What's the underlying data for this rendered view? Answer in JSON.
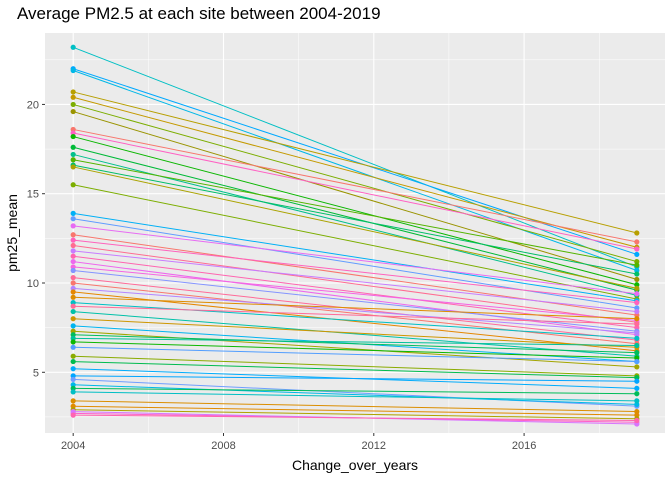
{
  "chart_data": {
    "type": "line",
    "title": "Average PM2.5 at each site between 2004-2019",
    "xlabel": "Change_over_years",
    "ylabel": "pm25_mean",
    "x": [
      2004,
      2019
    ],
    "xlim": [
      2003.25,
      2019.75
    ],
    "ylim": [
      1.6,
      24.0
    ],
    "x_ticks": [
      2004,
      2008,
      2012,
      2016
    ],
    "y_ticks": [
      5,
      10,
      15,
      20
    ],
    "grid": true,
    "legend": "none",
    "series": [
      {
        "values": [
          23.2,
          10.9
        ],
        "color": "#00BFC4"
      },
      {
        "values": [
          22.0,
          11.6
        ],
        "color": "#00A9FF"
      },
      {
        "values": [
          21.9,
          10.7
        ],
        "color": "#00B8E7"
      },
      {
        "values": [
          20.7,
          12.8
        ],
        "color": "#B79F00"
      },
      {
        "values": [
          20.4,
          12.0
        ],
        "color": "#C49A00"
      },
      {
        "values": [
          20.0,
          11.2
        ],
        "color": "#7CAE00"
      },
      {
        "values": [
          19.6,
          10.2
        ],
        "color": "#9A9400"
      },
      {
        "values": [
          18.6,
          12.3
        ],
        "color": "#F8766D"
      },
      {
        "values": [
          18.4,
          11.9
        ],
        "color": "#FF61C3"
      },
      {
        "values": [
          18.2,
          9.9
        ],
        "color": "#0CB702"
      },
      {
        "values": [
          17.6,
          9.6
        ],
        "color": "#00BA38"
      },
      {
        "values": [
          17.2,
          9.3
        ],
        "color": "#00C08B"
      },
      {
        "values": [
          16.9,
          11.0
        ],
        "color": "#53B400"
      },
      {
        "values": [
          16.6,
          10.5
        ],
        "color": "#00BE67"
      },
      {
        "values": [
          16.5,
          9.7
        ],
        "color": "#ABA300"
      },
      {
        "values": [
          15.5,
          9.1
        ],
        "color": "#7CAE00"
      },
      {
        "values": [
          13.9,
          9.0
        ],
        "color": "#00B0F6"
      },
      {
        "values": [
          13.6,
          8.6
        ],
        "color": "#619CFF"
      },
      {
        "values": [
          13.2,
          9.4
        ],
        "color": "#E76BF3"
      },
      {
        "values": [
          12.7,
          8.2
        ],
        "color": "#F8766D"
      },
      {
        "values": [
          12.4,
          8.9
        ],
        "color": "#FF62BC"
      },
      {
        "values": [
          12.1,
          7.8
        ],
        "color": "#FF6C91"
      },
      {
        "values": [
          11.8,
          8.4
        ],
        "color": "#C77CFF"
      },
      {
        "values": [
          11.5,
          7.5
        ],
        "color": "#FF64B0"
      },
      {
        "values": [
          11.2,
          7.1
        ],
        "color": "#ED68ED"
      },
      {
        "values": [
          10.9,
          7.9
        ],
        "color": "#F564E3"
      },
      {
        "values": [
          10.7,
          7.3
        ],
        "color": "#8494FF"
      },
      {
        "values": [
          10.3,
          6.8
        ],
        "color": "#FF6A98"
      },
      {
        "values": [
          10.0,
          6.6
        ],
        "color": "#F8766D"
      },
      {
        "values": [
          9.7,
          7.2
        ],
        "color": "#B385FF"
      },
      {
        "values": [
          9.5,
          6.2
        ],
        "color": "#E58700"
      },
      {
        "values": [
          9.2,
          8.0
        ],
        "color": "#DE8C00"
      },
      {
        "values": [
          8.9,
          6.9
        ],
        "color": "#00BFC4"
      },
      {
        "values": [
          8.7,
          7.7
        ],
        "color": "#FF6A98"
      },
      {
        "values": [
          8.4,
          5.9
        ],
        "color": "#00C1A9"
      },
      {
        "values": [
          8.0,
          6.4
        ],
        "color": "#CD9600"
      },
      {
        "values": [
          7.6,
          5.6
        ],
        "color": "#00B4F0"
      },
      {
        "values": [
          7.3,
          5.3
        ],
        "color": "#A3A500"
      },
      {
        "values": [
          7.1,
          6.1
        ],
        "color": "#00BD5C"
      },
      {
        "values": [
          6.9,
          6.5
        ],
        "color": "#00C19A"
      },
      {
        "values": [
          6.7,
          5.8
        ],
        "color": "#0CB702"
      },
      {
        "values": [
          6.4,
          5.6
        ],
        "color": "#529EFF"
      },
      {
        "values": [
          5.9,
          4.8
        ],
        "color": "#8AAB00"
      },
      {
        "values": [
          5.6,
          4.7
        ],
        "color": "#00BB4E"
      },
      {
        "values": [
          5.2,
          4.1
        ],
        "color": "#00ACFC"
      },
      {
        "values": [
          4.8,
          4.5
        ],
        "color": "#00A5FF"
      },
      {
        "values": [
          4.6,
          3.1
        ],
        "color": "#6F9EFF"
      },
      {
        "values": [
          4.3,
          3.2
        ],
        "color": "#00B8E7"
      },
      {
        "values": [
          4.1,
          3.8
        ],
        "color": "#00BC59"
      },
      {
        "values": [
          3.9,
          3.4
        ],
        "color": "#00BFC4"
      },
      {
        "values": [
          3.4,
          2.8
        ],
        "color": "#DB8E00"
      },
      {
        "values": [
          3.1,
          2.6
        ],
        "color": "#E08B00"
      },
      {
        "values": [
          2.9,
          2.4
        ],
        "color": "#AEA200"
      },
      {
        "values": [
          2.7,
          2.2
        ],
        "color": "#FF61C9"
      },
      {
        "values": [
          2.8,
          2.1
        ],
        "color": "#D874FD"
      },
      {
        "values": [
          2.6,
          2.3
        ],
        "color": "#FF64B0"
      }
    ]
  }
}
